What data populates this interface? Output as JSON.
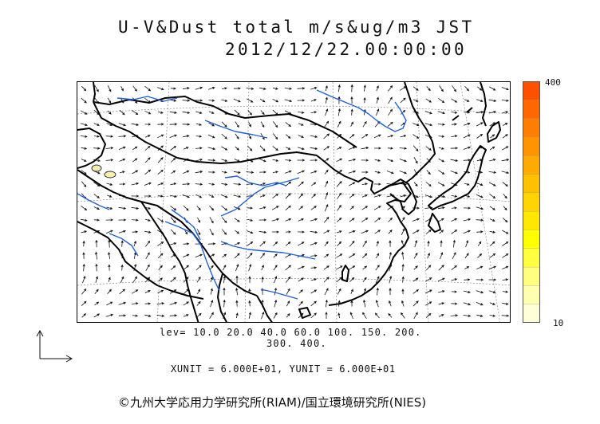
{
  "title": {
    "line1": "U-V&Dust total m/s&ug/m3 JST",
    "line2": "2012/12/22.00:00:00"
  },
  "colorbar": {
    "max_label": "400",
    "min_label": "10",
    "colors": [
      "#ffffd8",
      "#ffffb0",
      "#ffff80",
      "#ffff40",
      "#ffff00",
      "#ffe800",
      "#ffd400",
      "#ffc000",
      "#ffaa00",
      "#ff9400",
      "#ff7e00",
      "#ff6800",
      "#ff5000"
    ]
  },
  "legend": {
    "lev_line1": "lev= 10.0 20.0 40.0 60.0 100. 150. 200.",
    "lev_line2": "300. 400."
  },
  "units": {
    "line": "XUNIT = 6.000E+01, YUNIT = 6.000E+01"
  },
  "copyright": "©九州大学応用力学研究所(RIAM)/国立環境研究所(NIES)",
  "map": {
    "coastline_color": "#000000",
    "river_color": "#1f5fe8",
    "grid_color": "#888888",
    "arrow_color": "#111111"
  }
}
